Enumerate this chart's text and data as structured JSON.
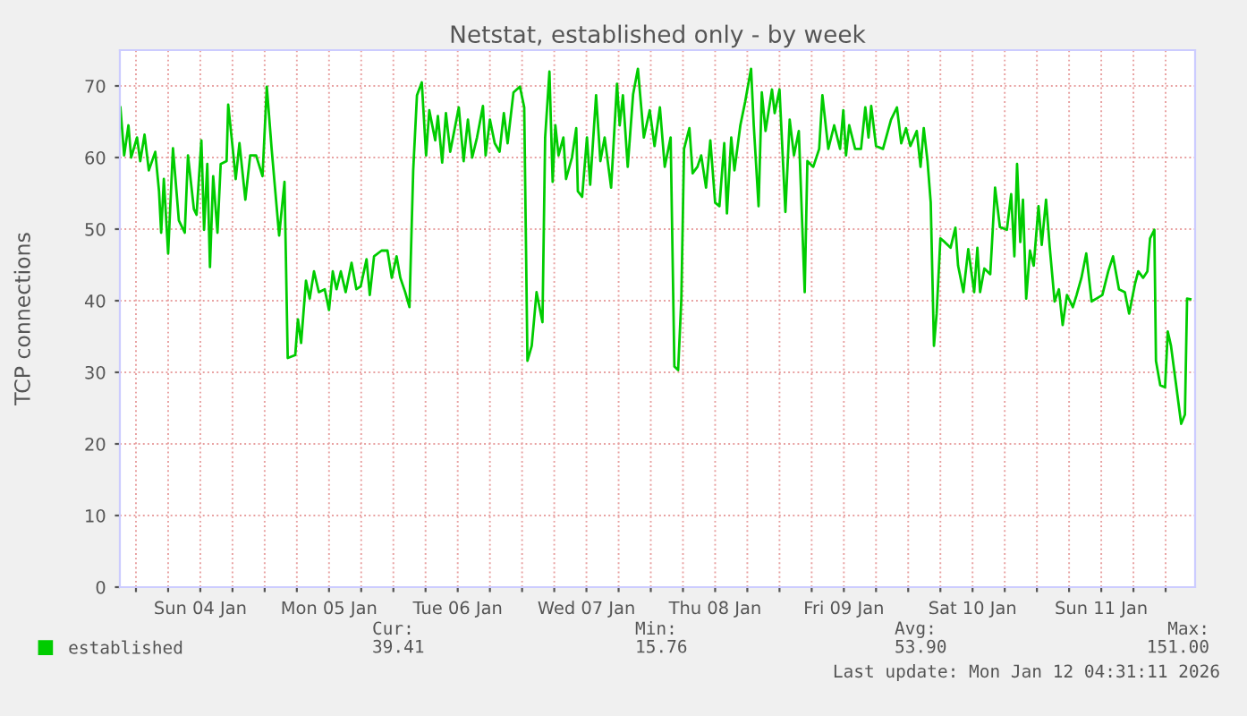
{
  "chart_data": {
    "type": "line",
    "title": "Netstat, established only - by week",
    "ylabel": "TCP connections",
    "annotations": [
      "Cur:\n39.41",
      "Min:\n15.76",
      "Avg:\n53.90",
      "Max:\n151.00",
      "Last update: Mon Jan 12 04:31:11 2026"
    ],
    "xlim": [
      "2026-01-03T21:00",
      "2026-01-12T05:30"
    ],
    "ylim": [
      0,
      75
    ],
    "xticks": [
      {
        "value": "2026-01-04T00:00",
        "label": null
      },
      {
        "value": "2026-01-04T06:00",
        "label": null
      },
      {
        "value": "2026-01-04T12:00",
        "label": "Sun 04 Jan"
      },
      {
        "value": "2026-01-04T18:00",
        "label": null
      },
      {
        "value": "2026-01-05T00:00",
        "label": null
      },
      {
        "value": "2026-01-05T06:00",
        "label": null
      },
      {
        "value": "2026-01-05T12:00",
        "label": "Mon 05 Jan"
      },
      {
        "value": "2026-01-05T18:00",
        "label": null
      },
      {
        "value": "2026-01-06T00:00",
        "label": null
      },
      {
        "value": "2026-01-06T06:00",
        "label": null
      },
      {
        "value": "2026-01-06T12:00",
        "label": "Tue 06 Jan"
      },
      {
        "value": "2026-01-06T18:00",
        "label": null
      },
      {
        "value": "2026-01-07T00:00",
        "label": null
      },
      {
        "value": "2026-01-07T06:00",
        "label": null
      },
      {
        "value": "2026-01-07T12:00",
        "label": "Wed 07 Jan"
      },
      {
        "value": "2026-01-07T18:00",
        "label": null
      },
      {
        "value": "2026-01-08T00:00",
        "label": null
      },
      {
        "value": "2026-01-08T06:00",
        "label": null
      },
      {
        "value": "2026-01-08T12:00",
        "label": "Thu 08 Jan"
      },
      {
        "value": "2026-01-08T18:00",
        "label": null
      },
      {
        "value": "2026-01-09T00:00",
        "label": null
      },
      {
        "value": "2026-01-09T06:00",
        "label": null
      },
      {
        "value": "2026-01-09T12:00",
        "label": "Fri 09 Jan"
      },
      {
        "value": "2026-01-09T18:00",
        "label": null
      },
      {
        "value": "2026-01-10T00:00",
        "label": null
      },
      {
        "value": "2026-01-10T06:00",
        "label": null
      },
      {
        "value": "2026-01-10T12:00",
        "label": "Sat 10 Jan"
      },
      {
        "value": "2026-01-10T18:00",
        "label": null
      },
      {
        "value": "2026-01-11T00:00",
        "label": null
      },
      {
        "value": "2026-01-11T06:00",
        "label": null
      },
      {
        "value": "2026-01-11T12:00",
        "label": "Sun 11 Jan"
      },
      {
        "value": "2026-01-11T18:00",
        "label": null
      },
      {
        "value": "2026-01-12T00:00",
        "label": null
      }
    ],
    "yticks": [
      0,
      10,
      20,
      30,
      40,
      50,
      60,
      70
    ],
    "grid": true,
    "legend": "bottom",
    "marker": "none",
    "line_style": "solid",
    "series": [
      {
        "name": "established",
        "color": "#00cc00",
        "x": [
          "2026-01-03T21:06",
          "2026-01-03T21:48",
          "2026-01-03T22:36",
          "2026-01-03T23:06",
          "2026-01-04T00:12",
          "2026-01-04T00:48",
          "2026-01-04T01:36",
          "2026-01-04T02:24",
          "2026-01-04T03:36",
          "2026-01-04T04:18",
          "2026-01-04T04:42",
          "2026-01-04T05:12",
          "2026-01-04T06:00",
          "2026-01-04T06:54",
          "2026-01-04T08:00",
          "2026-01-04T09:06",
          "2026-01-04T09:42",
          "2026-01-04T10:48",
          "2026-01-04T11:18",
          "2026-01-04T12:12",
          "2026-01-04T12:42",
          "2026-01-04T13:18",
          "2026-01-04T13:48",
          "2026-01-04T14:24",
          "2026-01-04T15:12",
          "2026-01-04T15:48",
          "2026-01-04T16:54",
          "2026-01-04T17:12",
          "2026-01-04T18:00",
          "2026-01-04T18:36",
          "2026-01-04T19:18",
          "2026-01-04T20:24",
          "2026-01-04T21:18",
          "2026-01-04T22:24",
          "2026-01-04T23:36",
          "2026-01-05T00:24",
          "2026-01-05T01:18",
          "2026-01-05T02:42",
          "2026-01-05T03:42",
          "2026-01-05T04:18",
          "2026-01-05T05:42",
          "2026-01-05T06:12",
          "2026-01-05T06:48",
          "2026-01-05T07:42",
          "2026-01-05T08:24",
          "2026-01-05T09:12",
          "2026-01-05T10:06",
          "2026-01-05T11:12",
          "2026-01-05T12:00",
          "2026-01-05T12:42",
          "2026-01-05T13:24",
          "2026-01-05T14:12",
          "2026-01-05T15:06",
          "2026-01-05T16:12",
          "2026-01-05T17:06",
          "2026-01-05T17:54",
          "2026-01-05T19:00",
          "2026-01-05T19:36",
          "2026-01-05T20:24",
          "2026-01-05T21:48",
          "2026-01-05T22:54",
          "2026-01-05T23:42",
          "2026-01-06T00:36",
          "2026-01-06T01:18",
          "2026-01-06T02:12",
          "2026-01-06T03:00",
          "2026-01-06T03:42",
          "2026-01-06T04:24",
          "2026-01-06T05:18",
          "2026-01-06T06:06",
          "2026-01-06T06:42",
          "2026-01-06T07:48",
          "2026-01-06T08:18",
          "2026-01-06T09:06",
          "2026-01-06T09:48",
          "2026-01-06T10:36",
          "2026-01-06T12:12",
          "2026-01-06T13:06",
          "2026-01-06T13:54",
          "2026-01-06T14:42",
          "2026-01-06T15:36",
          "2026-01-06T16:42",
          "2026-01-06T17:12",
          "2026-01-06T18:00",
          "2026-01-06T18:54",
          "2026-01-06T19:48",
          "2026-01-06T20:36",
          "2026-01-06T21:18",
          "2026-01-06T22:24",
          "2026-01-06T23:36",
          "2026-01-07T00:24",
          "2026-01-07T01:00",
          "2026-01-07T01:48",
          "2026-01-07T02:42",
          "2026-01-07T03:48",
          "2026-01-07T04:18",
          "2026-01-07T05:06",
          "2026-01-07T05:42",
          "2026-01-07T06:12",
          "2026-01-07T06:48",
          "2026-01-07T07:42",
          "2026-01-07T08:12",
          "2026-01-07T09:18",
          "2026-01-07T10:06",
          "2026-01-07T10:24",
          "2026-01-07T11:12",
          "2026-01-07T12:06",
          "2026-01-07T12:42",
          "2026-01-07T13:48",
          "2026-01-07T14:36",
          "2026-01-07T15:24",
          "2026-01-07T16:36",
          "2026-01-07T17:42",
          "2026-01-07T18:12",
          "2026-01-07T18:48",
          "2026-01-07T19:42",
          "2026-01-07T20:42",
          "2026-01-07T21:36",
          "2026-01-07T22:42",
          "2026-01-07T23:48",
          "2026-01-08T00:42",
          "2026-01-08T01:42",
          "2026-01-08T02:36",
          "2026-01-08T03:42",
          "2026-01-08T04:24",
          "2026-01-08T05:06",
          "2026-01-08T05:42",
          "2026-01-08T06:12",
          "2026-01-08T07:12",
          "2026-01-08T07:48",
          "2026-01-08T08:42",
          "2026-01-08T09:24",
          "2026-01-08T10:18",
          "2026-01-08T11:06",
          "2026-01-08T12:00",
          "2026-01-08T12:48",
          "2026-01-08T13:42",
          "2026-01-08T14:12",
          "2026-01-08T15:00",
          "2026-01-08T15:36",
          "2026-01-08T16:42",
          "2026-01-08T17:36",
          "2026-01-08T18:42",
          "2026-01-08T19:12",
          "2026-01-08T20:06",
          "2026-01-08T20:42",
          "2026-01-08T21:24",
          "2026-01-08T22:36",
          "2026-01-08T23:06",
          "2026-01-09T00:00",
          "2026-01-09T01:06",
          "2026-01-09T01:54",
          "2026-01-09T02:42",
          "2026-01-09T03:36",
          "2026-01-09T04:42",
          "2026-01-09T05:12",
          "2026-01-09T06:18",
          "2026-01-09T07:24",
          "2026-01-09T08:00",
          "2026-01-09T09:06",
          "2026-01-09T10:12",
          "2026-01-09T11:18",
          "2026-01-09T11:54",
          "2026-01-09T12:24",
          "2026-01-09T13:00",
          "2026-01-09T14:06",
          "2026-01-09T15:12",
          "2026-01-09T16:00",
          "2026-01-09T16:36",
          "2026-01-09T17:06",
          "2026-01-09T18:00",
          "2026-01-09T19:18",
          "2026-01-09T20:48",
          "2026-01-09T21:54",
          "2026-01-09T22:42",
          "2026-01-09T23:36",
          "2026-01-10T00:24",
          "2026-01-10T01:36",
          "2026-01-10T02:18",
          "2026-01-10T02:54",
          "2026-01-10T03:36",
          "2026-01-10T04:12",
          "2026-01-10T04:48",
          "2026-01-10T05:18",
          "2026-01-10T06:00",
          "2026-01-10T06:48",
          "2026-01-10T07:54",
          "2026-01-10T08:48",
          "2026-01-10T09:18",
          "2026-01-10T10:18",
          "2026-01-10T11:12",
          "2026-01-10T12:18",
          "2026-01-10T12:54",
          "2026-01-10T13:24",
          "2026-01-10T14:12",
          "2026-01-10T15:18",
          "2026-01-10T16:12",
          "2026-01-10T17:06",
          "2026-01-10T18:24",
          "2026-01-10T19:12",
          "2026-01-10T19:48",
          "2026-01-10T20:18",
          "2026-01-10T20:54",
          "2026-01-10T21:24",
          "2026-01-10T22:00",
          "2026-01-10T22:42",
          "2026-01-10T23:24",
          "2026-01-11T00:18",
          "2026-01-11T00:54",
          "2026-01-11T01:42",
          "2026-01-11T02:24",
          "2026-01-11T03:18",
          "2026-01-11T04:06",
          "2026-01-11T04:48",
          "2026-01-11T05:36",
          "2026-01-11T06:42",
          "2026-01-11T07:24",
          "2026-01-11T08:18",
          "2026-01-11T09:12",
          "2026-01-11T10:12",
          "2026-01-11T11:06",
          "2026-01-11T12:12",
          "2026-01-11T13:18",
          "2026-01-11T14:12",
          "2026-01-11T15:18",
          "2026-01-11T16:24",
          "2026-01-11T17:12",
          "2026-01-11T18:18",
          "2026-01-11T18:54",
          "2026-01-11T19:48",
          "2026-01-11T20:36",
          "2026-01-11T21:06",
          "2026-01-11T21:54",
          "2026-01-11T22:12",
          "2026-01-11T23:00",
          "2026-01-11T23:54",
          "2026-01-12T00:24",
          "2026-01-12T01:00",
          "2026-01-12T02:06",
          "2026-01-12T02:54",
          "2026-01-12T03:36",
          "2026-01-12T04:00",
          "2026-01-12T04:36"
        ],
        "values": [
          67,
          60.3,
          64.5,
          60,
          62.8,
          59.5,
          63.2,
          58.2,
          60.8,
          55.3,
          49.5,
          57,
          46.6,
          61.3,
          51.2,
          49.5,
          60.3,
          52.8,
          52,
          62.4,
          49.9,
          59.1,
          44.7,
          57.4,
          49.5,
          59.1,
          59.5,
          67.4,
          61.6,
          57,
          62,
          54.1,
          60.3,
          60.3,
          57.4,
          69.9,
          61.2,
          49.1,
          56.6,
          32,
          32.4,
          37.4,
          34.1,
          42.8,
          40.3,
          44.1,
          41.2,
          41.6,
          38.7,
          44.1,
          41.6,
          44.1,
          41.2,
          45.3,
          41.6,
          42,
          45.8,
          40.8,
          46.2,
          47,
          47,
          43.2,
          46.2,
          43.2,
          41.2,
          39.1,
          58.2,
          68.7,
          70.5,
          60.3,
          66.6,
          62.4,
          65.8,
          59.3,
          66.2,
          60.8,
          67,
          59.5,
          65.3,
          60,
          62.8,
          67.2,
          60.3,
          65.3,
          62,
          60.8,
          66.2,
          62,
          69.1,
          69.9,
          67,
          31.6,
          33.7,
          41.2,
          37,
          62.8,
          72,
          56.6,
          64.5,
          60.3,
          62.8,
          57,
          60,
          64.1,
          55.3,
          54.5,
          62.8,
          56.2,
          68.7,
          59.5,
          62.8,
          55.8,
          70.3,
          64.5,
          68.7,
          58.7,
          68.8,
          72.4,
          62.8,
          66.6,
          61.6,
          67,
          58.7,
          62.8,
          30.8,
          30.3,
          40.3,
          61.2,
          64.1,
          57.8,
          58.7,
          60.3,
          55.8,
          62.4,
          53.7,
          53.2,
          62,
          52.2,
          62.8,
          58.2,
          64.5,
          67.8,
          72.4,
          64.5,
          53.2,
          69.1,
          63.7,
          69.5,
          66.2,
          69.5,
          52.4,
          65.3,
          60.3,
          63.7,
          41.2,
          59.5,
          58.7,
          61.2,
          68.7,
          61.2,
          64.5,
          61.2,
          66.6,
          60.3,
          64.5,
          61.2,
          61.2,
          67,
          62.8,
          67.2,
          61.6,
          61.2,
          65.3,
          67,
          62,
          64.1,
          61.6,
          63.7,
          58.7,
          64.1,
          59.5,
          53.7,
          33.7,
          38.2,
          48.7,
          48.2,
          47.4,
          50.2,
          44.9,
          41.2,
          47.2,
          41.2,
          47.4,
          41.2,
          44.5,
          43.7,
          55.8,
          50.3,
          49.9,
          54.9,
          46.2,
          59.1,
          48.2,
          54.1,
          40.3,
          47,
          44.9,
          53.2,
          47.8,
          54.1,
          47.4,
          39.9,
          41.6,
          36.6,
          40.8,
          39.1,
          40.8,
          43.2,
          46.6,
          39.9,
          40.3,
          40.8,
          44.1,
          46.2,
          41.6,
          41.2,
          38.2,
          42.4,
          44.1,
          43.2,
          44.1,
          48.7,
          49.9,
          31.6,
          28.2,
          27.9,
          35.7,
          33.7,
          27.4,
          22.8,
          24.1,
          40.3,
          40.2
        ]
      }
    ]
  }
}
